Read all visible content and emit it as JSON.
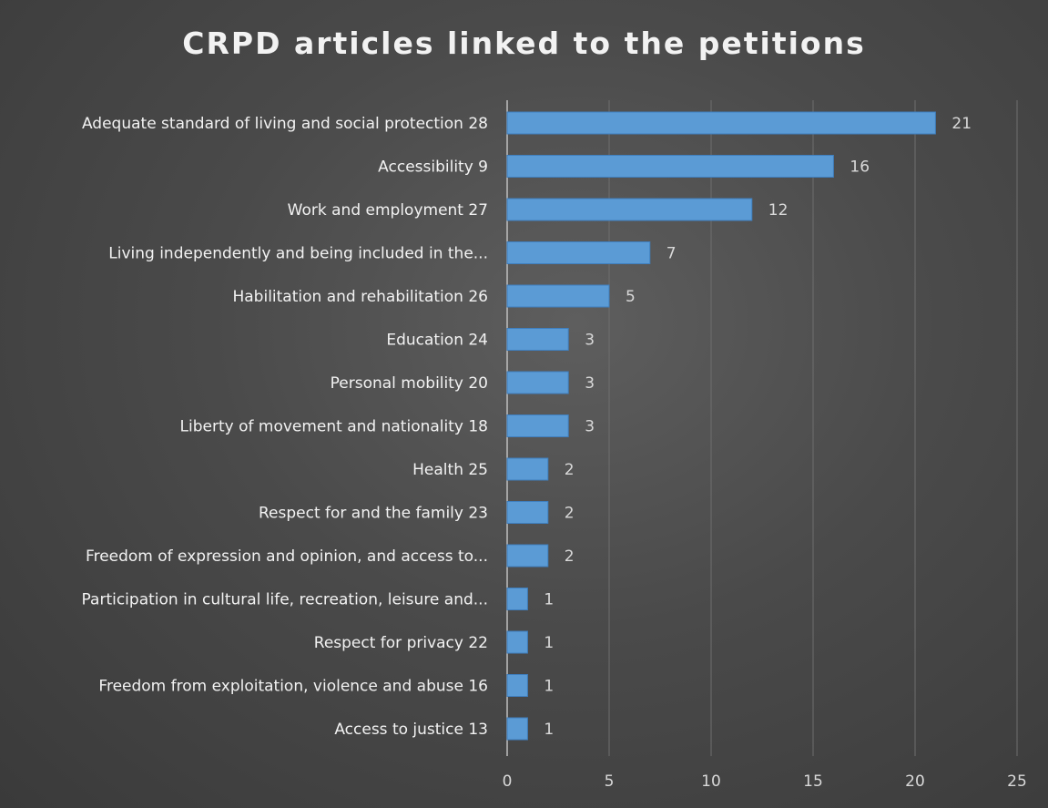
{
  "chart_data": {
    "type": "bar",
    "orientation": "horizontal",
    "title": "CRPD articles linked to the petitions",
    "xlabel": "",
    "ylabel": "",
    "categories": [
      "Adequate standard of living and social protection 28",
      "Accessibility 9",
      "Work and employment 27",
      "Living independently and being included in the...",
      "Habilitation and rehabilitation 26",
      "Education 24",
      "Personal mobility 20",
      "Liberty of movement and nationality 18",
      "Health 25",
      "Respect for and the family 23",
      "Freedom of expression and opinion, and access to...",
      "Participation in cultural life, recreation, leisure and...",
      "Respect for privacy 22",
      "Freedom from exploitation, violence and abuse 16",
      "Access to justice 13"
    ],
    "values": [
      21,
      16,
      12,
      7,
      5,
      3,
      3,
      3,
      2,
      2,
      2,
      1,
      1,
      1,
      1
    ],
    "data_labels": [
      "21",
      "16",
      "12",
      "7",
      "5",
      "3",
      "3",
      "3",
      "2",
      "2",
      "2",
      "1",
      "1",
      "1",
      "1"
    ],
    "x_ticks": [
      "0",
      "5",
      "10",
      "15",
      "20",
      "25"
    ],
    "x_tick_values": [
      0,
      5,
      10,
      15,
      20,
      25
    ],
    "xlim": [
      0,
      25
    ],
    "grid": true,
    "legend": "none",
    "bar_color": "#5b9bd5",
    "label_color": "#f2f2f2",
    "axis_text_color": "#d9d9d9",
    "grid_color": "#6e6e6e"
  }
}
